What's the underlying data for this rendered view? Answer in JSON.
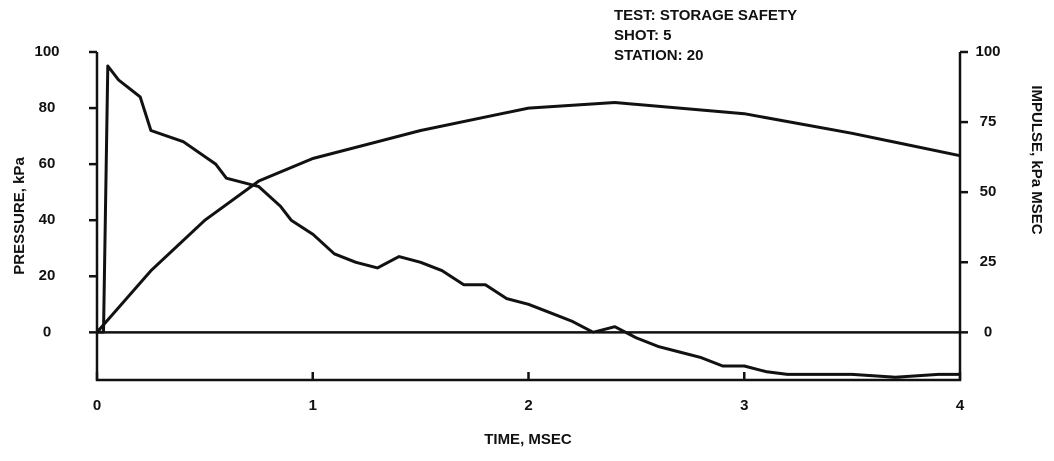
{
  "chart_data": {
    "type": "line",
    "annotations": [
      "TEST: STORAGE SAFETY",
      "SHOT: 5",
      "STATION: 20"
    ],
    "xlabel": "TIME, MSEC",
    "ylabel": "PRESSURE, kPa",
    "y2label": "IMPULSE, kPa MSEC",
    "xlim": [
      0,
      4
    ],
    "xticks": [
      0,
      1,
      2,
      3,
      4
    ],
    "ylim": [
      -17,
      100
    ],
    "yticks": [
      0,
      20,
      40,
      60,
      80,
      100
    ],
    "y2lim": [
      -17,
      100
    ],
    "y2ticks": [
      0,
      25,
      50,
      75,
      100
    ],
    "series": [
      {
        "name": "Pressure",
        "color": "#111111",
        "x": [
          0,
          0.03,
          0.05,
          0.1,
          0.2,
          0.25,
          0.4,
          0.55,
          0.6,
          0.75,
          0.85,
          0.9,
          1.0,
          1.1,
          1.2,
          1.3,
          1.4,
          1.5,
          1.6,
          1.7,
          1.8,
          1.9,
          2.0,
          2.1,
          2.2,
          2.3,
          2.4,
          2.5,
          2.6,
          2.7,
          2.8,
          2.9,
          3.0,
          3.1,
          3.2,
          3.5,
          3.7,
          3.9,
          4.0
        ],
        "values": [
          0,
          0,
          95,
          90,
          84,
          72,
          68,
          60,
          55,
          52,
          45,
          40,
          35,
          28,
          25,
          23,
          27,
          25,
          22,
          17,
          17,
          12,
          10,
          7,
          4,
          0,
          2,
          -2,
          -5,
          -7,
          -9,
          -12,
          -12,
          -14,
          -15,
          -15,
          -16,
          -15,
          -15
        ]
      },
      {
        "name": "Impulse",
        "color": "#111111",
        "axis": "y2",
        "x": [
          0,
          0.25,
          0.5,
          0.75,
          1.0,
          1.5,
          2.0,
          2.4,
          3.0,
          3.5,
          4.0
        ],
        "values": [
          0,
          22,
          40,
          54,
          62,
          72,
          80,
          82,
          78,
          71,
          63
        ]
      }
    ]
  }
}
